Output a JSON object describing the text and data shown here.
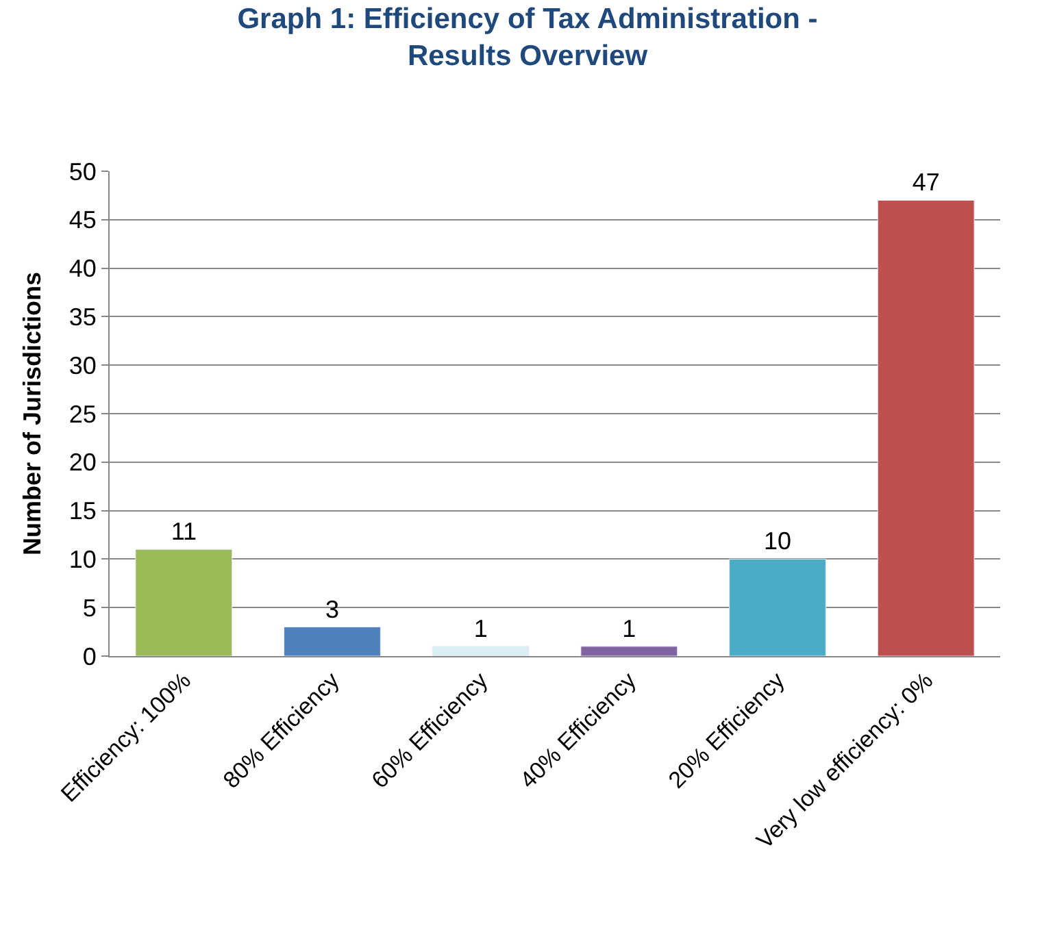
{
  "chart_data": {
    "type": "bar",
    "title": "Graph 1: Efficiency of Tax Administration -\nResults Overview",
    "ylabel": "Number of Jurisdictions",
    "categories": [
      "Efficiency: 100%",
      "80% Efficiency",
      "60% Efficiency",
      "40% Efficiency",
      "20% Efficiency",
      "Very low efficiency: 0%"
    ],
    "values": [
      11,
      3,
      1,
      1,
      10,
      47
    ],
    "colors": [
      "#9bbb59",
      "#4f81bd",
      "#dbeef4",
      "#8064a2",
      "#4bacc6",
      "#c0504d"
    ],
    "ylim": [
      0,
      50
    ],
    "yticks": [
      0,
      5,
      10,
      15,
      20,
      25,
      30,
      35,
      40,
      45,
      50
    ],
    "grid": "y",
    "data_labels": true
  }
}
